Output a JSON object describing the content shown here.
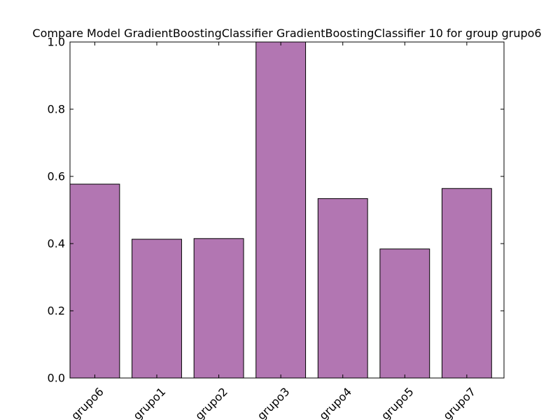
{
  "chart_data": {
    "type": "bar",
    "title": "Compare Model GradientBoostingClassifier GradientBoostingClassifier 10 for group grupo6",
    "xlabel": "",
    "ylabel": "",
    "categories": [
      "grupo6",
      "grupo1",
      "grupo2",
      "grupo3",
      "grupo4",
      "grupo5",
      "grupo7"
    ],
    "values": [
      0.577,
      0.413,
      0.415,
      1.0,
      0.534,
      0.384,
      0.564
    ],
    "ylim": [
      0.0,
      1.0
    ],
    "yticks": [
      0.0,
      0.2,
      0.4,
      0.6,
      0.8,
      1.0
    ],
    "ytick_labels": [
      "0.0",
      "0.2",
      "0.4",
      "0.6",
      "0.8",
      "1.0"
    ],
    "bar_color": "#b276b2",
    "edge_color": "#000000",
    "grid": false,
    "legend": "none"
  }
}
